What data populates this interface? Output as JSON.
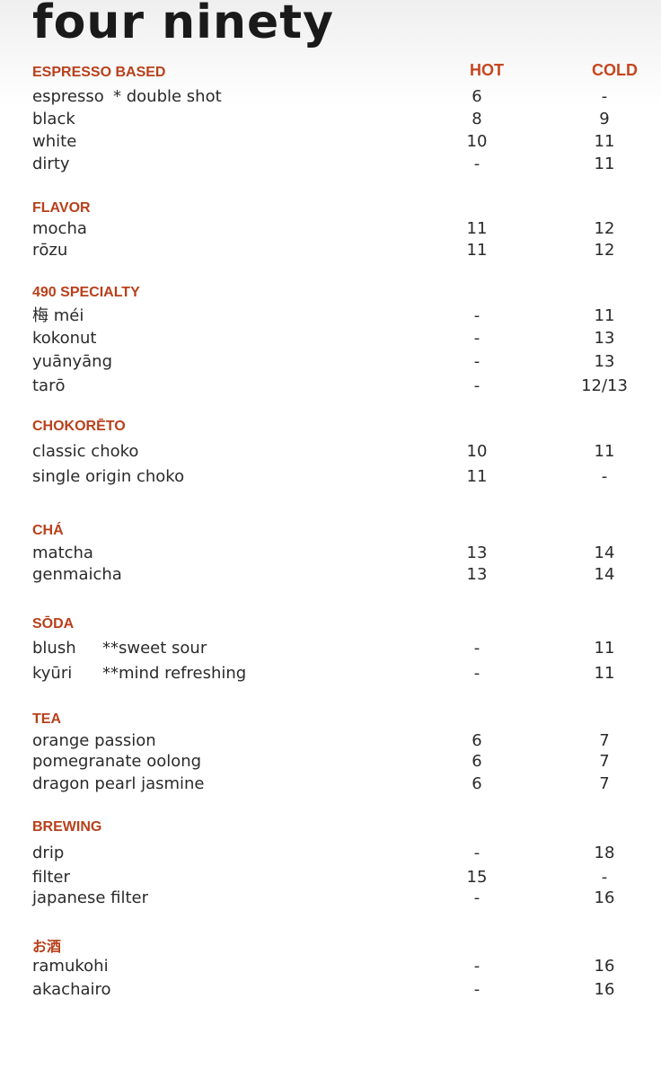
{
  "title": "four ninety",
  "columns": {
    "hot": "HOT",
    "cold": "COLD"
  },
  "sections": [
    {
      "name": "ESPRESSO BASED",
      "items": [
        {
          "name": "espresso",
          "note": "* double shot",
          "hot": "6",
          "cold": "-"
        },
        {
          "name": "black",
          "hot": "8",
          "cold": "9"
        },
        {
          "name": "white",
          "hot": "10",
          "cold": "11"
        },
        {
          "name": "dirty",
          "hot": "-",
          "cold": "11"
        }
      ]
    },
    {
      "name": "FLAVOR",
      "items": [
        {
          "name": "mocha",
          "hot": "11",
          "cold": "12"
        },
        {
          "name": "rōzu",
          "hot": "11",
          "cold": "12"
        }
      ]
    },
    {
      "name": "490 SPECIALTY",
      "items": [
        {
          "name": "梅 méi",
          "hot": "-",
          "cold": "11"
        },
        {
          "name": "kokonut",
          "hot": "-",
          "cold": "13"
        },
        {
          "name": "yuānyāng",
          "hot": "-",
          "cold": "13"
        },
        {
          "name": "tarō",
          "hot": "-",
          "cold": "12/13"
        }
      ]
    },
    {
      "name": "CHOKORĒTO",
      "items": [
        {
          "name": "classic choko",
          "hot": "10",
          "cold": "11"
        },
        {
          "name": "single origin choko",
          "hot": "11",
          "cold": "-"
        }
      ]
    },
    {
      "name": "CHÁ",
      "items": [
        {
          "name": "matcha",
          "hot": "13",
          "cold": "14"
        },
        {
          "name": "genmaicha",
          "hot": "13",
          "cold": "14"
        }
      ]
    },
    {
      "name": "SŌDA",
      "items": [
        {
          "name": "blush",
          "note": "**sweet sour",
          "hot": "-",
          "cold": "11"
        },
        {
          "name": "kyūri",
          "note": "**mind refreshing",
          "hot": "-",
          "cold": "11"
        }
      ]
    },
    {
      "name": "TEA",
      "items": [
        {
          "name": "orange passion",
          "hot": "6",
          "cold": "7"
        },
        {
          "name": "pomegranate oolong",
          "hot": "6",
          "cold": "7"
        },
        {
          "name": "dragon pearl jasmine",
          "hot": "6",
          "cold": "7"
        }
      ]
    },
    {
      "name": "BREWING",
      "items": [
        {
          "name": "drip",
          "hot": "-",
          "cold": "18"
        },
        {
          "name": "filter",
          "hot": "15",
          "cold": "-"
        },
        {
          "name": "japanese filter",
          "hot": "-",
          "cold": "16"
        }
      ]
    },
    {
      "name": "お酒",
      "items": [
        {
          "name": "ramukohi",
          "hot": "-",
          "cold": "16"
        },
        {
          "name": "akachairo",
          "hot": "-",
          "cold": "16"
        }
      ]
    }
  ]
}
